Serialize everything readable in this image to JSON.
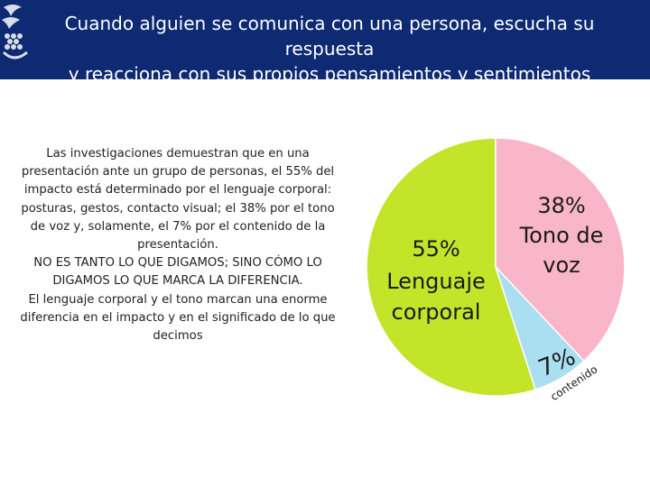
{
  "header": {
    "title": "Cuando alguien se comunica con una persona, escucha su respuesta\ny reacciona con sus propios pensamientos y sentimientos"
  },
  "body": {
    "paragraph1": "Las investigaciones demuestran que en una presentación ante un grupo de personas, el 55% del impacto está determinado por el lenguaje corporal: posturas, gestos, contacto visual; el 38% por el tono de voz y, solamente, el 7% por el contenido de la presentación.",
    "paragraph2": "NO ES TANTO LO QUE DIGAMOS; SINO CÓMO LO DIGAMOS LO QUE MARCA LA DIFERENCIA.",
    "paragraph3": "El lenguaje corporal y el tono marcan una enorme diferencia en el impacto y en el significado de lo que decimos"
  },
  "colors": {
    "header_bg": "#0d2a73",
    "slice_lenguaje": "#c4e42a",
    "slice_tono": "#f9b5c9",
    "slice_contenido": "#a9dff0",
    "label_text": "#1a1a1a"
  },
  "chart_data": {
    "type": "pie",
    "title": "",
    "slices": [
      {
        "name": "Lenguaje corporal",
        "value": 55,
        "label_pct": "55%",
        "label_text": "Lenguaje corporal",
        "color": "#c4e42a"
      },
      {
        "name": "Tono de voz",
        "value": 38,
        "label_pct": "38%",
        "label_text": "Tono de voz",
        "color": "#f9b5c9"
      },
      {
        "name": "contenido",
        "value": 7,
        "label_pct": "7%",
        "label_text": "contenido",
        "color": "#a9dff0"
      }
    ]
  }
}
